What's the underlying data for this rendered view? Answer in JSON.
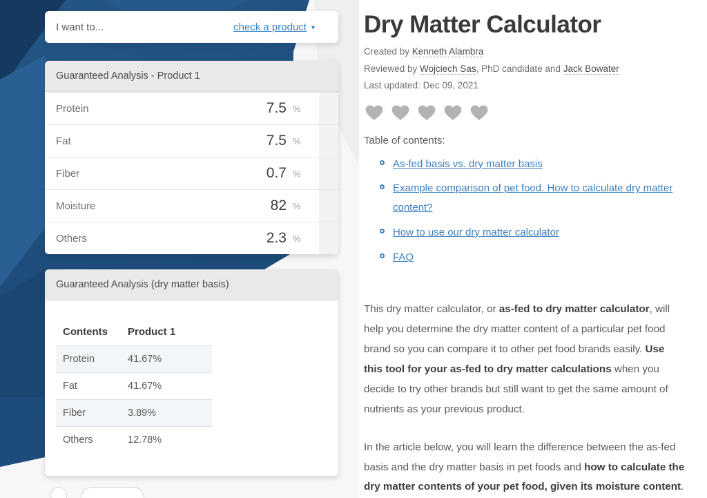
{
  "colors": {
    "navy": "#1d4b79",
    "accent_blue": "#3584c7",
    "link_blue": "#3b7fc0",
    "heart_gray": "#b3b3b3"
  },
  "calculator": {
    "intent": {
      "label": "I want to...",
      "selected": "check a product",
      "caret_icon": "▾"
    },
    "panel1": {
      "title": "Guaranteed Analysis - Product 1",
      "rows": [
        {
          "label": "Protein",
          "value": "7.5",
          "unit": "%"
        },
        {
          "label": "Fat",
          "value": "7.5",
          "unit": "%"
        },
        {
          "label": "Fiber",
          "value": "0.7",
          "unit": "%"
        },
        {
          "label": "Moisture",
          "value": "82",
          "unit": "%"
        },
        {
          "label": "Others",
          "value": "2.3",
          "unit": "%"
        }
      ]
    },
    "panel2": {
      "title": "Guaranteed Analysis (dry matter basis)",
      "table": {
        "headers": [
          "Contents",
          "Product 1"
        ],
        "rows": [
          {
            "label": "Protein",
            "value": "41.67%"
          },
          {
            "label": "Fat",
            "value": "41.67%"
          },
          {
            "label": "Fiber",
            "value": "3.89%"
          },
          {
            "label": "Others",
            "value": "12.78%"
          }
        ]
      }
    }
  },
  "article": {
    "title": "Dry Matter Calculator",
    "byline": {
      "prefix": "Created by ",
      "author": "Kenneth Alambra"
    },
    "reviewed": {
      "prefix": "Reviewed by ",
      "reviewer1": "Wojciech Sas",
      "middle": ", PhD candidate and ",
      "reviewer2": "Jack Bowater"
    },
    "last_updated": "Last updated: Dec 09, 2021",
    "rating": {
      "hearts": 5
    },
    "toc": {
      "title": "Table of contents:",
      "items": [
        "As-fed basis vs. dry matter basis",
        "Example comparison of pet food. How to calculate dry matter content?",
        "How to use our dry matter calculator",
        "FAQ"
      ]
    },
    "paragraphs": [
      [
        {
          "text": "This dry matter calculator, or ",
          "b": false
        },
        {
          "text": "as-fed to dry matter calculator",
          "b": true
        },
        {
          "text": ", will help you determine the dry matter content of a particular pet food brand so you can compare it to other pet food brands easily. ",
          "b": false
        },
        {
          "text": "Use this tool for your as-fed to dry matter calculations",
          "b": true
        },
        {
          "text": " when you decide to try other brands but still want to get the same amount of nutrients as your previous product.",
          "b": false
        }
      ],
      [
        {
          "text": "In the article below, you will learn the difference between the as-fed basis and the dry matter basis in pet foods and ",
          "b": false
        },
        {
          "text": "how to calculate the dry matter contents of your pet food, given its moisture content",
          "b": true
        },
        {
          "text": ".",
          "b": false
        }
      ]
    ]
  }
}
